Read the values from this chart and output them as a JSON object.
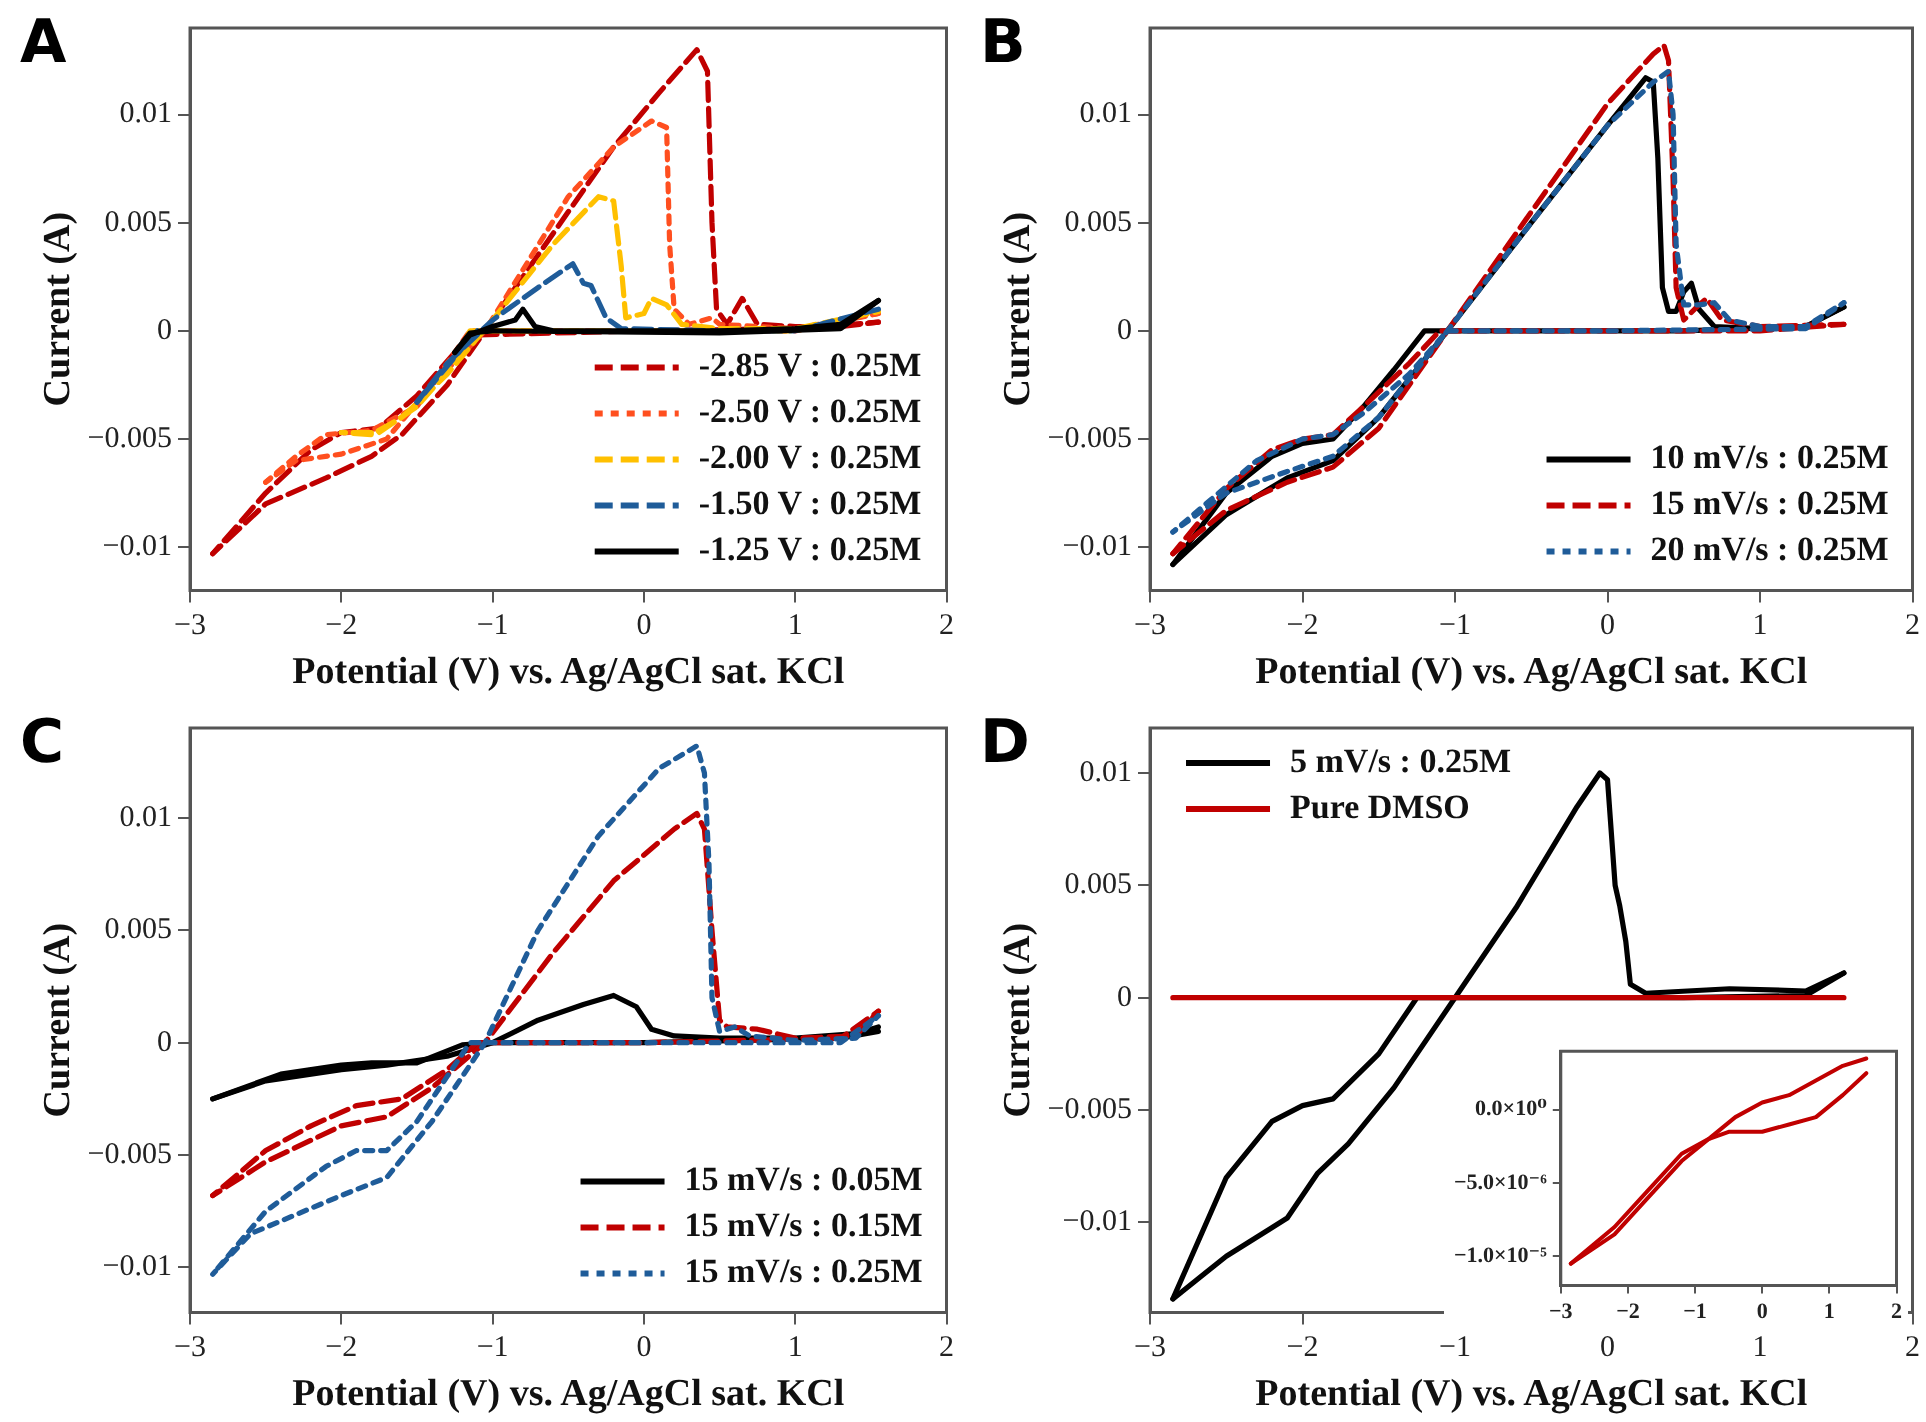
{
  "chart_data": [
    {
      "type": "line",
      "title": "A",
      "xlabel": "Potential (V) vs. Ag/AgCl sat. KCl",
      "ylabel": "Current (A)",
      "xlim": [
        -3,
        2
      ],
      "xticks": [
        -3,
        -2,
        -1,
        0,
        1,
        2
      ],
      "ylim": [
        -0.012,
        0.014
      ],
      "yticks": [
        -0.01,
        -0.005,
        0,
        0.005,
        0.01
      ],
      "grid": false,
      "legend": "bottom right",
      "series": [
        {
          "name": "-2.85 V : 0.25M",
          "color": "#c00000",
          "line_style": "dashed",
          "x": [
            -2.85,
            -2.5,
            -2.1,
            -1.8,
            -1.6,
            -1.3,
            -1.05,
            -0.8,
            -0.5,
            -0.2,
            0.1,
            0.35,
            0.42,
            0.45,
            0.48,
            0.55,
            0.65,
            0.75,
            1.0,
            1.3,
            1.55
          ],
          "values": [
            -0.0103,
            -0.008,
            -0.0068,
            -0.0058,
            -0.0048,
            -0.0025,
            0,
            0.0025,
            0.0055,
            0.0085,
            0.011,
            0.013,
            0.012,
            0.005,
            0.001,
            0.0003,
            0.0015,
            0.0003,
            0.0002,
            0.0002,
            0.0004
          ]
        },
        {
          "color": "#c00000",
          "line_style": "dashed",
          "x": [
            -2.85,
            -2.5,
            -2.2,
            -2.0,
            -1.75,
            -1.5,
            -1.15,
            0,
            1.0,
            1.55
          ],
          "values": [
            -0.0103,
            -0.0075,
            -0.0055,
            -0.0047,
            -0.0045,
            -0.003,
            -0.0002,
            0,
            0.0001,
            0.0004
          ]
        },
        {
          "name": "-2.50 V : 0.25M",
          "color": "#ff4f1f",
          "line_style": "dotted",
          "x": [
            -2.5,
            -2.3,
            -2.0,
            -1.7,
            -1.4,
            -1.05,
            -0.5,
            -0.2,
            0.05,
            0.15,
            0.17,
            0.2,
            0.3,
            0.45,
            0.5,
            1.0,
            1.55
          ],
          "values": [
            -0.007,
            -0.006,
            -0.0057,
            -0.005,
            -0.0025,
            0,
            0.0062,
            0.0085,
            0.0097,
            0.0094,
            0.004,
            0.001,
            0.0003,
            0.0006,
            0.0003,
            0.0001,
            0.0008
          ]
        },
        {
          "color": "#ff4f1f",
          "line_style": "dotted",
          "x": [
            -2.5,
            -2.3,
            -2.1,
            -1.8,
            -1.5,
            -1.2,
            -1.15,
            0,
            1.0,
            1.55
          ],
          "values": [
            -0.007,
            -0.0058,
            -0.0048,
            -0.0046,
            -0.0035,
            -0.0005,
            0,
            0,
            0,
            0.0008
          ]
        },
        {
          "name": "-2.00 V : 0.25M",
          "color": "#ffc000",
          "line_style": "dashed",
          "x": [
            -2.0,
            -1.8,
            -1.6,
            -1.3,
            -1.0,
            -0.6,
            -0.3,
            -0.2,
            -0.15,
            -0.12,
            0,
            0.05,
            0.15,
            0.25,
            0.5,
            1.0,
            1.55
          ],
          "values": [
            -0.0047,
            -0.0048,
            -0.004,
            -0.002,
            0.0005,
            0.004,
            0.0062,
            0.006,
            0.003,
            0.0006,
            0.0008,
            0.0015,
            0.0012,
            0.0003,
            0.0001,
            0.0001,
            0.0009
          ]
        },
        {
          "color": "#ffc000",
          "line_style": "dashed",
          "x": [
            -2.0,
            -1.75,
            -1.5,
            -1.25,
            -1.15,
            1.0,
            1.55
          ],
          "values": [
            -0.0047,
            -0.0047,
            -0.0035,
            -0.0015,
            0,
            0,
            0.0009
          ]
        },
        {
          "name": "-1.50 V : 0.25M",
          "color": "#1f5c99",
          "line_style": "dashed",
          "x": [
            -1.5,
            -1.3,
            -1.0,
            -0.7,
            -0.47,
            -0.4,
            -0.35,
            -0.25,
            -0.15,
            0.5,
            1.0,
            1.55
          ],
          "values": [
            -0.0033,
            -0.0015,
            0.0005,
            0.002,
            0.0031,
            0.0022,
            0.0021,
            0.0006,
            0.0001,
            0,
            0,
            0.001
          ]
        },
        {
          "color": "#1f5c99",
          "line_style": "dashed",
          "x": [
            -1.5,
            -1.2,
            -1.1
          ],
          "values": [
            -0.0033,
            -0.0008,
            0
          ]
        },
        {
          "name": "-1.25 V : 0.25M",
          "color": "#000000",
          "line_style": "solid",
          "x": [
            -1.25,
            -1.15,
            -1.0,
            -0.85,
            -0.8,
            -0.72,
            -0.6,
            0.5,
            1.0,
            1.3,
            1.55
          ],
          "values": [
            -0.001,
            -0.0002,
            0.0002,
            0.0005,
            0.001,
            0.0002,
            0,
            0,
            0.0001,
            0.0003,
            0.0014
          ]
        },
        {
          "color": "#000000",
          "line_style": "solid",
          "x": [
            -1.25,
            -1.15,
            -1.0,
            0.5,
            1.3,
            1.55
          ],
          "values": [
            -0.001,
            -0.0001,
            0,
            -0.0001,
            0.0001,
            0.0014
          ]
        }
      ]
    },
    {
      "type": "line",
      "title": "B",
      "xlabel": "Potential (V) vs. Ag/AgCl sat. KCl",
      "ylabel": "Current (A)",
      "xlim": [
        -3,
        2
      ],
      "xticks": [
        -3,
        -2,
        -1,
        0,
        1,
        2
      ],
      "ylim": [
        -0.012,
        0.014
      ],
      "yticks": [
        -0.01,
        -0.005,
        0,
        0.005,
        0.01
      ],
      "grid": false,
      "legend": "bottom right",
      "series": [
        {
          "name": "10 mV/s : 0.25M",
          "color": "#000000",
          "line_style": "solid",
          "x": [
            -2.85,
            -2.5,
            -2.1,
            -1.8,
            -1.5,
            -1.05,
            -0.5,
            0,
            0.25,
            0.3,
            0.33,
            0.36,
            0.4,
            0.45,
            0.5,
            0.55,
            0.6,
            0.7,
            1.0,
            1.3,
            1.55
          ],
          "values": [
            -0.0108,
            -0.0085,
            -0.0068,
            -0.006,
            -0.004,
            0,
            0.005,
            0.0095,
            0.0117,
            0.0115,
            0.008,
            0.002,
            0.0009,
            0.0009,
            0.0018,
            0.0022,
            0.001,
            0.0002,
            0.0001,
            0.0002,
            0.0011
          ]
        },
        {
          "color": "#000000",
          "line_style": "solid",
          "x": [
            -2.85,
            -2.5,
            -2.2,
            -2.0,
            -1.8,
            -1.6,
            -1.4,
            -1.2,
            -0.5,
            0.5,
            1.3,
            1.55
          ],
          "values": [
            -0.0108,
            -0.0075,
            -0.0058,
            -0.0052,
            -0.005,
            -0.0035,
            -0.0018,
            0,
            0,
            0,
            0.0002,
            0.0011
          ]
        },
        {
          "name": "15 mV/s : 0.25M",
          "color": "#c00000",
          "line_style": "dashed",
          "x": [
            -2.85,
            -2.5,
            -2.1,
            -1.8,
            -1.5,
            -1.05,
            -0.5,
            0,
            0.3,
            0.37,
            0.4,
            0.43,
            0.45,
            0.5,
            0.6,
            0.65,
            0.75,
            1.0,
            1.55
          ],
          "values": [
            -0.0103,
            -0.0083,
            -0.007,
            -0.0063,
            -0.0045,
            0,
            0.0055,
            0.0105,
            0.0128,
            0.0132,
            0.0125,
            0.007,
            0.002,
            0.0005,
            0.0012,
            0.0015,
            0.0005,
            0.0002,
            0.0003
          ]
        },
        {
          "color": "#c00000",
          "line_style": "dashed",
          "x": [
            -2.85,
            -2.5,
            -2.2,
            -2.0,
            -1.8,
            -1.6,
            -1.3,
            -1.1,
            0,
            1.0,
            1.55
          ],
          "values": [
            -0.0103,
            -0.0073,
            -0.0055,
            -0.005,
            -0.0048,
            -0.0035,
            -0.0015,
            0,
            0,
            0,
            0.0003
          ]
        },
        {
          "name": "20 mV/s : 0.25M",
          "color": "#1f5c99",
          "line_style": "dotted",
          "x": [
            -2.85,
            -2.5,
            -2.1,
            -1.8,
            -1.5,
            -1.05,
            -0.5,
            0,
            0.3,
            0.4,
            0.43,
            0.45,
            0.5,
            0.6,
            0.7,
            0.8,
            1.0,
            1.3,
            1.55
          ],
          "values": [
            -0.0093,
            -0.0075,
            -0.0065,
            -0.0058,
            -0.004,
            0,
            0.005,
            0.0095,
            0.0115,
            0.012,
            0.01,
            0.004,
            0.0012,
            0.0012,
            0.0013,
            0.0005,
            0.0002,
            0.0002,
            0.0013
          ]
        },
        {
          "color": "#1f5c99",
          "line_style": "dotted",
          "x": [
            -2.85,
            -2.6,
            -2.3,
            -2.0,
            -1.8,
            -1.6,
            -1.3,
            -1.05,
            0,
            1.3,
            1.55
          ],
          "values": [
            -0.0093,
            -0.0078,
            -0.006,
            -0.005,
            -0.0048,
            -0.0038,
            -0.002,
            0,
            0,
            0.0001,
            0.0013
          ]
        }
      ]
    },
    {
      "type": "line",
      "title": "C",
      "xlabel": "Potential (V) vs. Ag/AgCl sat. KCl",
      "ylabel": "Current (A)",
      "xlim": [
        -3,
        2
      ],
      "xticks": [
        -3,
        -2,
        -1,
        0,
        1,
        2
      ],
      "ylim": [
        -0.012,
        0.014
      ],
      "yticks": [
        -0.01,
        -0.005,
        0,
        0.005,
        0.01
      ],
      "grid": false,
      "legend": "bottom right",
      "series": [
        {
          "name": "15 mV/s : 0.05M",
          "color": "#000000",
          "line_style": "solid",
          "x": [
            -2.85,
            -2.5,
            -2.0,
            -1.7,
            -1.3,
            -1.0,
            -0.7,
            -0.4,
            -0.2,
            -0.05,
            0.05,
            0.2,
            0.5,
            1.0,
            1.4,
            1.55
          ],
          "values": [
            -0.0025,
            -0.0017,
            -0.0012,
            -0.001,
            -0.0006,
            0,
            0.001,
            0.0017,
            0.0021,
            0.0016,
            0.0006,
            0.0003,
            0.0002,
            0.0002,
            0.0004,
            0.0007
          ]
        },
        {
          "color": "#000000",
          "line_style": "solid",
          "x": [
            -2.85,
            -2.4,
            -2.0,
            -1.8,
            -1.5,
            -1.2,
            -1.0,
            0,
            1.3,
            1.55
          ],
          "values": [
            -0.0025,
            -0.0014,
            -0.001,
            -0.0009,
            -0.0009,
            -0.0001,
            0,
            0,
            0.0002,
            0.0005
          ]
        },
        {
          "name": "15 mV/s : 0.15M",
          "color": "#c00000",
          "line_style": "dashed",
          "x": [
            -2.85,
            -2.5,
            -2.0,
            -1.7,
            -1.4,
            -1.05,
            -0.6,
            -0.2,
            0.2,
            0.35,
            0.4,
            0.45,
            0.5,
            0.55,
            0.75,
            1.0,
            1.4,
            1.55
          ],
          "values": [
            -0.0068,
            -0.0053,
            -0.0037,
            -0.0033,
            -0.002,
            0,
            0.004,
            0.0072,
            0.0095,
            0.0102,
            0.0095,
            0.005,
            0.001,
            0.0007,
            0.0006,
            0.0002,
            0.0003,
            0.0014
          ]
        },
        {
          "color": "#c00000",
          "line_style": "dashed",
          "x": [
            -2.85,
            -2.5,
            -2.2,
            -1.9,
            -1.6,
            -1.3,
            -1.1,
            0,
            1.3,
            1.55
          ],
          "values": [
            -0.0068,
            -0.0048,
            -0.0037,
            -0.0028,
            -0.0025,
            -0.0012,
            0,
            0,
            0.0002,
            0.0014
          ]
        },
        {
          "name": "15 mV/s : 0.25M",
          "color": "#1f5c99",
          "line_style": "dotted",
          "x": [
            -2.85,
            -2.6,
            -2.0,
            -1.7,
            -1.4,
            -1.05,
            -0.7,
            -0.3,
            0.1,
            0.35,
            0.4,
            0.43,
            0.45,
            0.5,
            0.6,
            0.7,
            1.0,
            1.4,
            1.55
          ],
          "values": [
            -0.0103,
            -0.0085,
            -0.0068,
            -0.006,
            -0.0035,
            0,
            0.005,
            0.0092,
            0.0122,
            0.0132,
            0.012,
            0.008,
            0.002,
            0.0005,
            0.0007,
            0.0003,
            0.0001,
            0.0002,
            0.0012
          ]
        },
        {
          "color": "#1f5c99",
          "line_style": "dotted",
          "x": [
            -2.85,
            -2.5,
            -2.1,
            -1.9,
            -1.7,
            -1.5,
            -1.3,
            -1.15,
            0,
            1.3,
            1.55
          ],
          "values": [
            -0.0103,
            -0.0075,
            -0.0055,
            -0.0048,
            -0.0048,
            -0.0035,
            -0.0015,
            0,
            0,
            0,
            0.0012
          ]
        }
      ]
    },
    {
      "type": "line",
      "title": "D",
      "xlabel": "Potential (V) vs. Ag/AgCl sat. KCl",
      "ylabel": "Current (A)",
      "xlim": [
        -3,
        2
      ],
      "xticks": [
        -3,
        -2,
        -1,
        0,
        1,
        2
      ],
      "ylim": [
        -0.014,
        0.012
      ],
      "yticks": [
        -0.01,
        -0.005,
        0,
        0.005,
        0.01
      ],
      "grid": false,
      "legend": "top left",
      "series": [
        {
          "name": "5 mV/s : 0.25M",
          "color": "#000000",
          "line_style": "solid",
          "x": [
            -2.85,
            -2.5,
            -2.1,
            -1.9,
            -1.7,
            -1.4,
            -1.0,
            -0.6,
            -0.2,
            -0.05,
            0.0,
            0.05,
            0.08,
            0.12,
            0.15,
            0.25,
            0.8,
            1.3,
            1.55
          ],
          "values": [
            -0.0134,
            -0.0115,
            -0.0098,
            -0.0078,
            -0.0065,
            -0.004,
            0,
            0.004,
            0.0085,
            0.01,
            0.0097,
            0.005,
            0.0041,
            0.0025,
            0.0006,
            0.0002,
            0.0004,
            0.0003,
            0.0011
          ]
        },
        {
          "color": "#000000",
          "line_style": "solid",
          "x": [
            -2.85,
            -2.5,
            -2.2,
            -2.0,
            -1.8,
            -1.5,
            -1.25,
            -0.5,
            0.5,
            1.3,
            1.55
          ],
          "values": [
            -0.0134,
            -0.008,
            -0.0055,
            -0.0048,
            -0.0045,
            -0.0025,
            0,
            0,
            0,
            0.0001,
            0.0011
          ]
        },
        {
          "name": "Pure DMSO",
          "color": "#c00000",
          "line_style": "solid",
          "x": [
            -2.85,
            1.55
          ],
          "values": [
            0,
            0
          ]
        }
      ]
    },
    {
      "type": "line",
      "xlim": [
        -3,
        2
      ],
      "xticks": [
        -3,
        -2,
        -1,
        0,
        1,
        2
      ],
      "ylim": [
        -1.2e-05,
        4e-06
      ],
      "yticks": [
        {
          "value": -1e-05,
          "label": "−1.0×10⁻⁵"
        },
        {
          "value": -5e-06,
          "label": "−5.0×10⁻⁶"
        },
        {
          "value": 0,
          "label": "0.0×10⁰"
        }
      ],
      "grid": false,
      "series": [
        {
          "color": "#c00000",
          "line_style": "solid",
          "x": [
            -2.85,
            -2.2,
            -1.7,
            -1.2,
            -0.8,
            -0.5,
            0,
            0.4,
            0.8,
            1.2,
            1.55
          ],
          "values": [
            -1.05e-05,
            -8.5e-06,
            -6e-06,
            -3.5e-06,
            -2e-06,
            -1.5e-06,
            -1.5e-06,
            -1e-06,
            -5e-07,
            1e-06,
            2.5e-06
          ]
        },
        {
          "color": "#c00000",
          "line_style": "solid",
          "x": [
            -2.85,
            -2.2,
            -1.7,
            -1.2,
            -0.8,
            -0.4,
            0,
            0.4,
            0.8,
            1.2,
            1.55
          ],
          "values": [
            -1.05e-05,
            -8e-06,
            -5.5e-06,
            -3e-06,
            -2e-06,
            -5e-07,
            5e-07,
            1e-06,
            2e-06,
            3e-06,
            3.5e-06
          ]
        }
      ]
    }
  ]
}
